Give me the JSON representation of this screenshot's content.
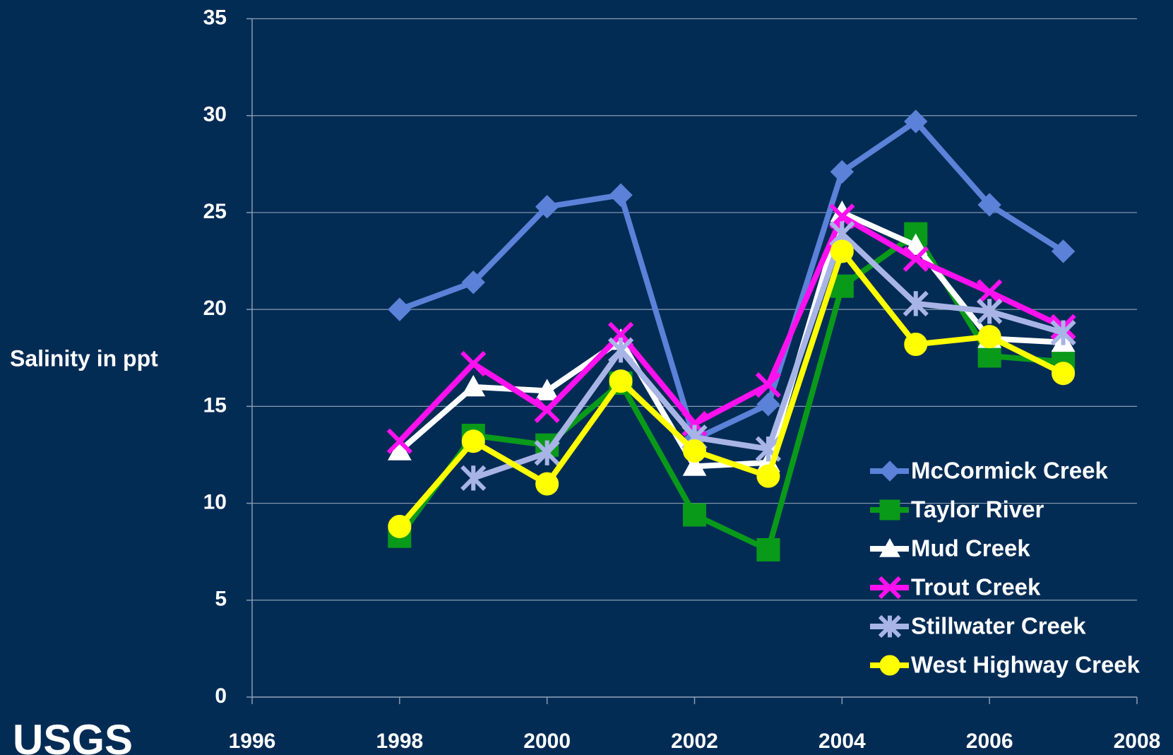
{
  "chart_data": {
    "type": "line",
    "y_label": "Salinity in ppt",
    "logo": "USGS",
    "x": [
      1998,
      1999,
      2000,
      2001,
      2002,
      2003,
      2004,
      2005,
      2006,
      2007
    ],
    "xlim": [
      1996,
      2008
    ],
    "xticks": [
      1996,
      1998,
      2000,
      2002,
      2004,
      2006,
      2008
    ],
    "ylim": [
      0,
      35
    ],
    "yticks": [
      0,
      5,
      10,
      15,
      20,
      25,
      30,
      35
    ],
    "grid": true,
    "legend": "lower right",
    "series": [
      {
        "name": "McCormick Creek",
        "color": "#5b82d8",
        "marker": "diamond",
        "values": [
          20.0,
          21.4,
          25.3,
          25.9,
          13.3,
          15.1,
          27.1,
          29.7,
          25.4,
          23.0
        ]
      },
      {
        "name": "Taylor River",
        "color": "#0a9a1a",
        "marker": "square",
        "values": [
          8.3,
          13.5,
          13.0,
          16.2,
          9.4,
          7.6,
          21.2,
          23.9,
          17.6,
          17.3
        ]
      },
      {
        "name": "Mud Creek",
        "color": "#ffffff",
        "marker": "triangle",
        "values": [
          12.7,
          16.0,
          15.8,
          18.4,
          11.9,
          12.1,
          25.0,
          23.3,
          18.5,
          18.3
        ]
      },
      {
        "name": "Trout Creek",
        "color": "#ff10ee",
        "marker": "x",
        "values": [
          13.2,
          17.2,
          14.8,
          18.7,
          14.1,
          16.1,
          24.8,
          22.6,
          20.9,
          19.1
        ]
      },
      {
        "name": "Stillwater Creek",
        "color": "#a9b4e6",
        "marker": "star",
        "values": [
          null,
          11.3,
          12.6,
          17.9,
          13.4,
          12.8,
          23.9,
          20.3,
          19.9,
          18.8
        ]
      },
      {
        "name": "West Highway Creek",
        "color": "#ffff00",
        "marker": "circle",
        "values": [
          8.8,
          13.2,
          11.0,
          16.3,
          12.7,
          11.4,
          23.0,
          18.2,
          18.6,
          16.7
        ]
      }
    ]
  }
}
